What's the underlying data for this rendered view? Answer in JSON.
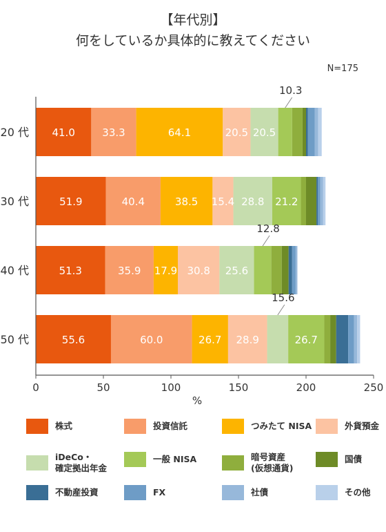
{
  "title": {
    "line1": "【年代別】",
    "line2": "何をしているか具体的に教えてください"
  },
  "sample_label": "N=175",
  "chart_data": {
    "type": "bar",
    "orientation": "horizontal",
    "stacked": true,
    "categories": [
      "20 代",
      "30 代",
      "40 代",
      "50 代"
    ],
    "xlabel": "%",
    "xlim": [
      0,
      250
    ],
    "xticks": [
      0,
      50,
      100,
      150,
      200,
      250
    ],
    "series": [
      {
        "name": "株式",
        "color": "#E8580F",
        "values": [
          41.0,
          51.9,
          51.3,
          55.6
        ]
      },
      {
        "name": "投資信託",
        "color": "#F89C6A",
        "values": [
          33.3,
          40.4,
          35.9,
          60.0
        ]
      },
      {
        "name": "つみたて NISA",
        "color": "#FDB400",
        "values": [
          64.1,
          38.5,
          17.9,
          26.7
        ]
      },
      {
        "name": "外貨預金",
        "color": "#FCC3A2",
        "values": [
          20.5,
          15.4,
          30.8,
          28.9
        ]
      },
      {
        "name": "iDeCo・\n確定拠出年金",
        "color": "#C6DDAE",
        "values": [
          20.5,
          28.8,
          25.6,
          15.6
        ]
      },
      {
        "name": "一般 NISA",
        "color": "#A4C957",
        "values": [
          10.3,
          21.2,
          12.8,
          26.7
        ]
      },
      {
        "name": "暗号資産\n(仮想通貨)",
        "color": "#8FAE3D",
        "values": [
          7.7,
          3.8,
          7.7,
          4.4
        ]
      },
      {
        "name": "国債",
        "color": "#6E8B27",
        "values": [
          2.6,
          7.7,
          5.1,
          4.4
        ]
      },
      {
        "name": "不動産投資",
        "color": "#3A6E95",
        "values": [
          1.3,
          1.0,
          2.6,
          8.9
        ]
      },
      {
        "name": "FX",
        "color": "#6E9CC6",
        "values": [
          5.1,
          1.9,
          2.6,
          4.4
        ]
      },
      {
        "name": "社債",
        "color": "#97B8DA",
        "values": [
          2.6,
          1.9,
          1.3,
          2.2
        ]
      },
      {
        "name": "その他",
        "color": "#B9D0EA",
        "values": [
          2.6,
          1.9,
          0.0,
          2.2
        ]
      }
    ],
    "data_labels": [
      {
        "row": 0,
        "series": 0,
        "text": "41.0"
      },
      {
        "row": 0,
        "series": 1,
        "text": "33.3"
      },
      {
        "row": 0,
        "series": 2,
        "text": "64.1"
      },
      {
        "row": 0,
        "series": 3,
        "text": "20.5"
      },
      {
        "row": 0,
        "series": 4,
        "text": "20.5"
      },
      {
        "row": 0,
        "series": 5,
        "text": "10.3",
        "callout": true
      },
      {
        "row": 1,
        "series": 0,
        "text": "51.9"
      },
      {
        "row": 1,
        "series": 1,
        "text": "40.4"
      },
      {
        "row": 1,
        "series": 2,
        "text": "38.5"
      },
      {
        "row": 1,
        "series": 3,
        "text": "15.4"
      },
      {
        "row": 1,
        "series": 4,
        "text": "28.8"
      },
      {
        "row": 1,
        "series": 5,
        "text": "21.2"
      },
      {
        "row": 2,
        "series": 0,
        "text": "51.3"
      },
      {
        "row": 2,
        "series": 1,
        "text": "35.9"
      },
      {
        "row": 2,
        "series": 2,
        "text": "17.9"
      },
      {
        "row": 2,
        "series": 3,
        "text": "30.8"
      },
      {
        "row": 2,
        "series": 4,
        "text": "25.6"
      },
      {
        "row": 2,
        "series": 5,
        "text": "12.8",
        "callout": true
      },
      {
        "row": 3,
        "series": 0,
        "text": "55.6"
      },
      {
        "row": 3,
        "series": 1,
        "text": "60.0"
      },
      {
        "row": 3,
        "series": 2,
        "text": "26.7"
      },
      {
        "row": 3,
        "series": 3,
        "text": "28.9"
      },
      {
        "row": 3,
        "series": 4,
        "text": "15.6",
        "callout": true
      },
      {
        "row": 3,
        "series": 5,
        "text": "26.7"
      }
    ]
  }
}
